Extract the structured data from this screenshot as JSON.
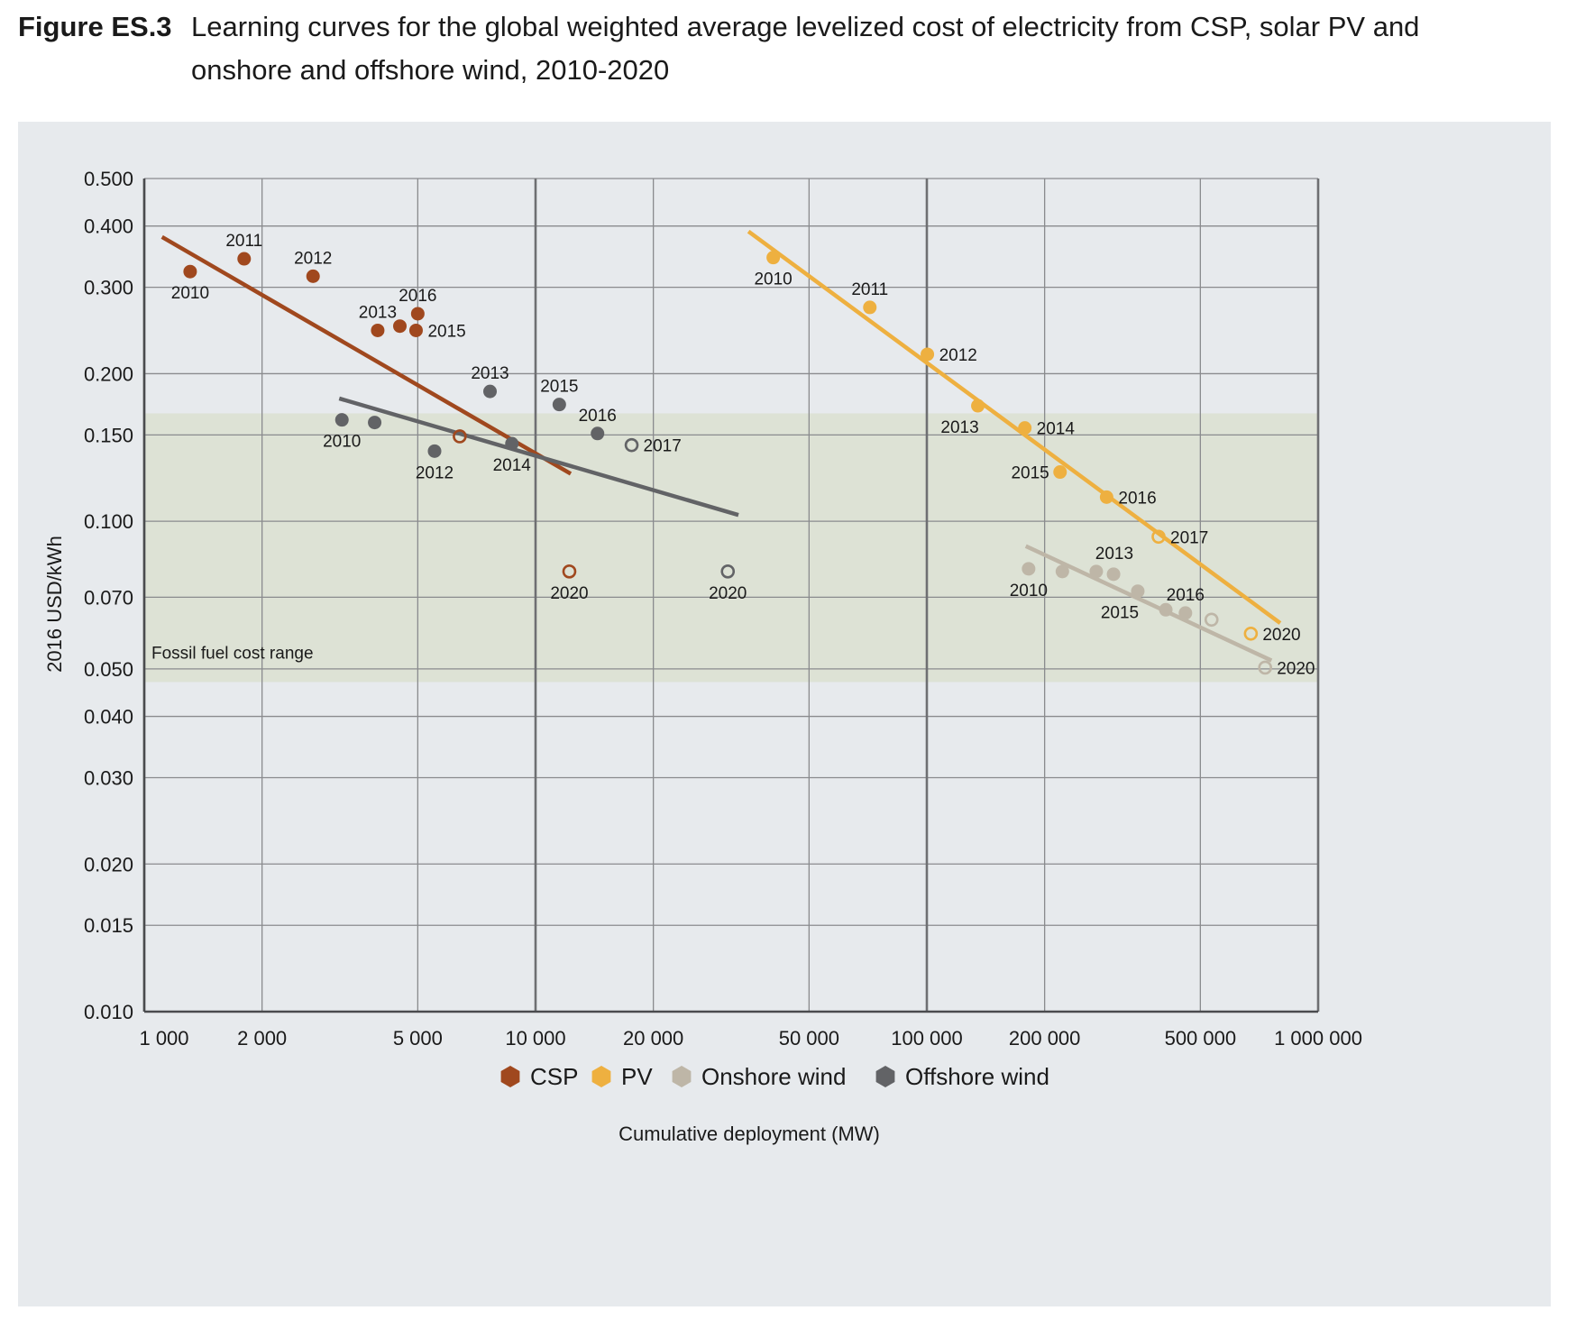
{
  "figure": {
    "number": "Figure ES.3",
    "title": "Learning curves for the global weighted average levelized cost of electricity from CSP, solar PV and onshore and offshore wind, 2010-2020"
  },
  "chart_data": {
    "type": "scatter",
    "xscale": "log",
    "yscale": "log",
    "xlabel": "Cumulative deployment (MW)",
    "ylabel": "2016 USD/kWh",
    "xlim": [
      1000,
      1000000
    ],
    "ylim": [
      0.01,
      0.5
    ],
    "grid": true,
    "legend_position": "bottom",
    "x_ticks": [
      {
        "value": 1000,
        "label": "1 000"
      },
      {
        "value": 2000,
        "label": "2 000"
      },
      {
        "value": 5000,
        "label": "5 000"
      },
      {
        "value": 10000,
        "label": "10 000"
      },
      {
        "value": 20000,
        "label": "20 000"
      },
      {
        "value": 50000,
        "label": "50 000"
      },
      {
        "value": 100000,
        "label": "100 000"
      },
      {
        "value": 200000,
        "label": "200 000"
      },
      {
        "value": 500000,
        "label": "500 000"
      },
      {
        "value": 1000000,
        "label": "1 000 000"
      }
    ],
    "y_ticks": [
      {
        "value": 0.5,
        "label": "0.500"
      },
      {
        "value": 0.4,
        "label": "0.400"
      },
      {
        "value": 0.3,
        "label": "0.300"
      },
      {
        "value": 0.2,
        "label": "0.200"
      },
      {
        "value": 0.15,
        "label": "0.150"
      },
      {
        "value": 0.1,
        "label": "0.100"
      },
      {
        "value": 0.07,
        "label": "0.070"
      },
      {
        "value": 0.05,
        "label": "0.050"
      },
      {
        "value": 0.04,
        "label": "0.040"
      },
      {
        "value": 0.03,
        "label": "0.030"
      },
      {
        "value": 0.02,
        "label": "0.020"
      },
      {
        "value": 0.015,
        "label": "0.015"
      },
      {
        "value": 0.01,
        "label": "0.010"
      }
    ],
    "band": {
      "label": "Fossil fuel cost range",
      "ymin": 0.047,
      "ymax": 0.166,
      "color": "#dde2d5"
    },
    "series": [
      {
        "name": "CSP",
        "color": "#a0481e",
        "trend": [
          [
            1110,
            0.38
          ],
          [
            12300,
            0.125
          ]
        ],
        "points": [
          {
            "x": 1310,
            "y": 0.323,
            "label": "2010",
            "pos": "below"
          },
          {
            "x": 1800,
            "y": 0.343,
            "label": "2011",
            "pos": "above"
          },
          {
            "x": 2700,
            "y": 0.316,
            "label": "2012",
            "pos": "above"
          },
          {
            "x": 3950,
            "y": 0.245,
            "label": "2013",
            "pos": "aboveleft"
          },
          {
            "x": 4500,
            "y": 0.25,
            "label": "",
            "pos": "none"
          },
          {
            "x": 4950,
            "y": 0.245,
            "label": "2015",
            "pos": "right"
          },
          {
            "x": 5000,
            "y": 0.265,
            "label": "2016",
            "pos": "above"
          },
          {
            "x": 6400,
            "y": 0.149,
            "label": "",
            "pos": "none",
            "open": true
          },
          {
            "x": 12200,
            "y": 0.079,
            "label": "2020",
            "pos": "below",
            "open": true
          }
        ]
      },
      {
        "name": "PV",
        "color": "#eeb040",
        "trend": [
          [
            35000,
            0.39
          ],
          [
            800000,
            0.062
          ]
        ],
        "points": [
          {
            "x": 40500,
            "y": 0.345,
            "label": "2010",
            "pos": "below"
          },
          {
            "x": 71500,
            "y": 0.273,
            "label": "2011",
            "pos": "above"
          },
          {
            "x": 100300,
            "y": 0.219,
            "label": "2012",
            "pos": "right"
          },
          {
            "x": 135000,
            "y": 0.172,
            "label": "2013",
            "pos": "belowleft"
          },
          {
            "x": 178000,
            "y": 0.155,
            "label": "2014",
            "pos": "right"
          },
          {
            "x": 219000,
            "y": 0.126,
            "label": "2015",
            "pos": "left"
          },
          {
            "x": 288000,
            "y": 0.112,
            "label": "2016",
            "pos": "right"
          },
          {
            "x": 391000,
            "y": 0.093,
            "label": "2017",
            "pos": "right",
            "open": true
          },
          {
            "x": 673000,
            "y": 0.059,
            "label": "2020",
            "pos": "right",
            "open": true
          }
        ]
      },
      {
        "name": "Onshore wind",
        "color": "#beb6a7",
        "trend": [
          [
            179000,
            0.089
          ],
          [
            760000,
            0.052
          ]
        ],
        "points": [
          {
            "x": 182000,
            "y": 0.08,
            "label": "2010",
            "pos": "below"
          },
          {
            "x": 222000,
            "y": 0.079,
            "label": "",
            "pos": "none"
          },
          {
            "x": 271000,
            "y": 0.079,
            "label": "2013",
            "pos": "aboveright"
          },
          {
            "x": 300000,
            "y": 0.078,
            "label": "",
            "pos": "none"
          },
          {
            "x": 346000,
            "y": 0.072,
            "label": "2015",
            "pos": "belowleft"
          },
          {
            "x": 408000,
            "y": 0.066,
            "label": "",
            "pos": "none"
          },
          {
            "x": 458000,
            "y": 0.065,
            "label": "2016",
            "pos": "above"
          },
          {
            "x": 534000,
            "y": 0.063,
            "label": "",
            "pos": "none",
            "open": true
          },
          {
            "x": 732000,
            "y": 0.0503,
            "label": "2020",
            "pos": "right",
            "open": true
          }
        ]
      },
      {
        "name": "Offshore wind",
        "color": "#626366",
        "trend": [
          [
            3150,
            0.178
          ],
          [
            33000,
            0.103
          ]
        ],
        "points": [
          {
            "x": 3200,
            "y": 0.161,
            "label": "2010",
            "pos": "below"
          },
          {
            "x": 3880,
            "y": 0.159,
            "label": "",
            "pos": "none"
          },
          {
            "x": 5520,
            "y": 0.139,
            "label": "2012",
            "pos": "below"
          },
          {
            "x": 7650,
            "y": 0.184,
            "label": "2013",
            "pos": "above"
          },
          {
            "x": 8700,
            "y": 0.144,
            "label": "2014",
            "pos": "below"
          },
          {
            "x": 11500,
            "y": 0.173,
            "label": "2015",
            "pos": "above"
          },
          {
            "x": 14400,
            "y": 0.151,
            "label": "2016",
            "pos": "above"
          },
          {
            "x": 17600,
            "y": 0.143,
            "label": "2017",
            "pos": "right",
            "open": true
          },
          {
            "x": 31000,
            "y": 0.079,
            "label": "2020",
            "pos": "below",
            "open": true
          }
        ]
      }
    ]
  }
}
